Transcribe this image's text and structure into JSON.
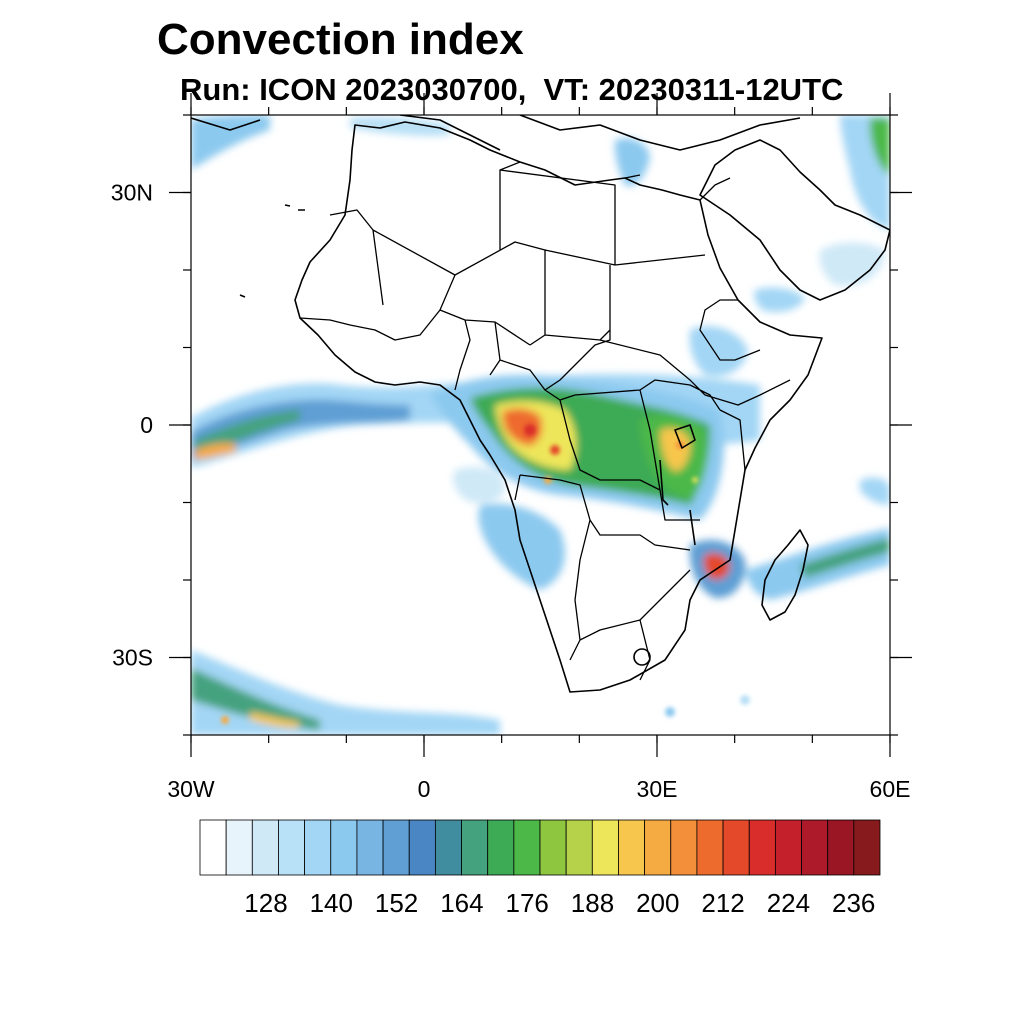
{
  "title": "Convection index",
  "subtitle": "Run: ICON 2023030700,  VT: 20230311-12UTC",
  "map": {
    "lon_range": [
      -30,
      60
    ],
    "lat_range": [
      -40,
      40
    ],
    "x_ticks": [
      {
        "lon": -30,
        "label": "30W"
      },
      {
        "lon": 0,
        "label": "0"
      },
      {
        "lon": 30,
        "label": "30E"
      },
      {
        "lon": 60,
        "label": "60E"
      }
    ],
    "y_ticks": [
      {
        "lat": 30,
        "label": "30N"
      },
      {
        "lat": 0,
        "label": "0"
      },
      {
        "lat": -30,
        "label": "30S"
      }
    ]
  },
  "colorbar": {
    "colors": [
      "#ffffff",
      "#e8f4fb",
      "#cfe9f7",
      "#b8e0f6",
      "#a3d6f5",
      "#8cc9ef",
      "#78b5e3",
      "#5f9fd4",
      "#4a86c4",
      "#3f8d9e",
      "#45a27f",
      "#3daa55",
      "#4cb848",
      "#8ec640",
      "#b5d24a",
      "#eee65a",
      "#f7c64c",
      "#f6aa42",
      "#f38f3a",
      "#ee6b2e",
      "#e44a2a",
      "#d92d2b",
      "#c3202c",
      "#ad1b2a",
      "#9a1624",
      "#871a1c"
    ],
    "labels": [
      "128",
      "140",
      "152",
      "164",
      "176",
      "188",
      "200",
      "212",
      "224",
      "236"
    ]
  }
}
